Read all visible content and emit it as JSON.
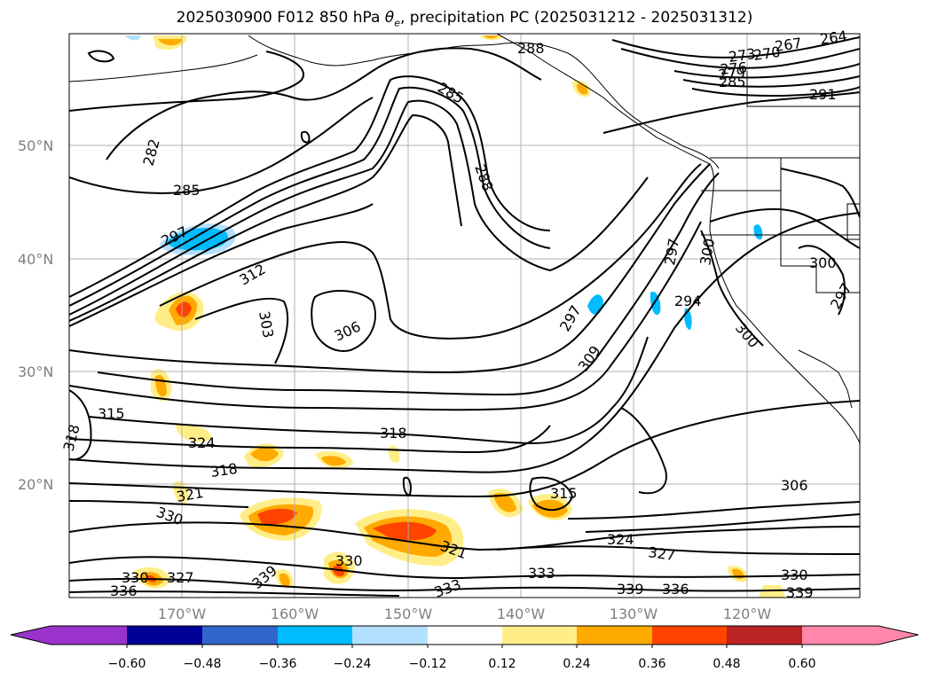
{
  "title_main": "2025030900 F012 850 hPa ",
  "title_theta": "θ",
  "title_theta_sub": "e",
  "title_rest": ", precipitation PC (2025031212 - 2025031312)",
  "lat_ticks": [
    "50°N",
    "40°N",
    "30°N",
    "20°N"
  ],
  "lon_ticks": [
    "170°W",
    "160°W",
    "150°W",
    "140°W",
    "130°W",
    "120°W"
  ],
  "contour_labels": [
    "288",
    "267",
    "264",
    "270",
    "273",
    "276",
    "279",
    "285",
    "291",
    "282",
    "285",
    "285",
    "288",
    "297",
    "312",
    "303",
    "306",
    "297",
    "297",
    "300",
    "294",
    "300",
    "297",
    "300",
    "309",
    "315",
    "318",
    "318",
    "324",
    "318",
    "321",
    "330",
    "315",
    "306",
    "324",
    "327",
    "321",
    "330",
    "333",
    "330",
    "330",
    "327",
    "336",
    "339",
    "333",
    "336",
    "339",
    "339"
  ],
  "colorbar": {
    "ticks": [
      "−0.60",
      "−0.48",
      "−0.36",
      "−0.24",
      "−0.12",
      "0.12",
      "0.24",
      "0.36",
      "0.48",
      "0.60"
    ],
    "colors": [
      "#9933cc",
      "#000099",
      "#3366cc",
      "#00bbff",
      "#b3e0ff",
      "#ffffff",
      "#ffee88",
      "#ffaa00",
      "#ff4400",
      "#bb2222",
      "#ff88aa"
    ]
  },
  "precip_colors": {
    "light": "#ffee88",
    "medium": "#ffaa00",
    "heavy": "#ff4400",
    "neg_light": "#b3e0ff",
    "neg_medium": "#00bbff"
  }
}
